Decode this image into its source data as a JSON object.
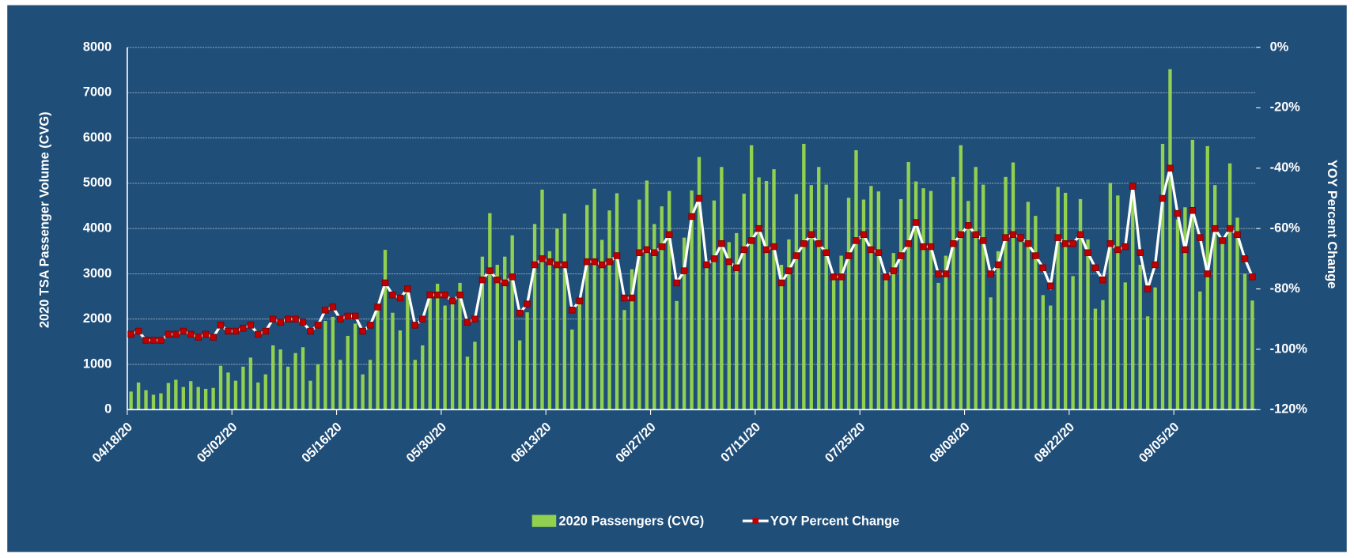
{
  "chart_data": {
    "type": "bar_line",
    "y_label": "2020 TSA Passenger Volume (CVG)",
    "y2_label": "YOY Percent Change",
    "categories": [
      "04/18/20",
      null,
      null,
      null,
      null,
      null,
      null,
      null,
      null,
      null,
      null,
      null,
      null,
      null,
      "05/02/20",
      null,
      null,
      null,
      null,
      null,
      null,
      null,
      null,
      null,
      null,
      null,
      null,
      null,
      "05/16/20",
      null,
      null,
      null,
      null,
      null,
      null,
      null,
      null,
      null,
      null,
      null,
      null,
      null,
      "05/30/20",
      null,
      null,
      null,
      null,
      null,
      null,
      null,
      null,
      null,
      null,
      null,
      null,
      null,
      "06/13/20",
      null,
      null,
      null,
      null,
      null,
      null,
      null,
      null,
      null,
      null,
      null,
      null,
      null,
      "06/27/20",
      null,
      null,
      null,
      null,
      null,
      null,
      null,
      null,
      null,
      null,
      null,
      null,
      null,
      "07/11/20",
      null,
      null,
      null,
      null,
      null,
      null,
      null,
      null,
      null,
      null,
      null,
      null,
      null,
      "07/25/20",
      null,
      null,
      null,
      null,
      null,
      null,
      null,
      null,
      null,
      null,
      null,
      null,
      null,
      "08/08/20",
      null,
      null,
      null,
      null,
      null,
      null,
      null,
      null,
      null,
      null,
      null,
      null,
      null,
      "08/22/20",
      null,
      null,
      null,
      null,
      null,
      null,
      null,
      null,
      null,
      null,
      null,
      null,
      null,
      "09/05/20",
      null,
      null,
      null,
      null,
      null,
      null,
      null,
      null,
      null,
      null
    ],
    "series": [
      {
        "name": "2020 Passengers (CVG)",
        "color": "#92d050",
        "values": [
          400,
          600,
          430,
          330,
          360,
          590,
          660,
          500,
          630,
          500,
          460,
          480,
          970,
          820,
          640,
          950,
          1150,
          600,
          780,
          1420,
          1330,
          950,
          1250,
          1380,
          640,
          1000,
          1960,
          2050,
          1100,
          1630,
          1900,
          780,
          1100,
          2200,
          3530,
          2140,
          1750,
          2600,
          1100,
          1420,
          2550,
          2780,
          2300,
          2400,
          2800,
          1170,
          1500,
          3380,
          4340,
          3200,
          3380,
          3850,
          1530,
          2150,
          4100,
          4860,
          3500,
          4000,
          4330,
          1770,
          2400,
          4520,
          4880,
          3750,
          4400,
          4780,
          2200,
          3100,
          4640,
          5060,
          4100,
          4490,
          4830,
          2400,
          3800,
          4840,
          5580,
          3200,
          4620,
          5360,
          3700,
          3900,
          4770,
          5840,
          5130,
          5050,
          5310,
          3200,
          3760,
          4760,
          5870,
          4960,
          5360,
          4970,
          3000,
          3400,
          4680,
          5730,
          4640,
          4940,
          4820,
          3000,
          3460,
          4650,
          5470,
          5040,
          4890,
          4830,
          2800,
          3400,
          5140,
          5840,
          4610,
          5360,
          4970,
          2480,
          3500,
          5140,
          5460,
          3700,
          4590,
          4280,
          2530,
          2300,
          4920,
          4790,
          2950,
          4650,
          3760,
          2230,
          2420,
          5010,
          4730,
          2810,
          5000,
          3200,
          2060,
          2700,
          5870,
          7520,
          4200,
          4470,
          5960,
          2610,
          5820,
          4960,
          3700,
          5440,
          4240,
          3000,
          2410
        ]
      },
      {
        "name": "YOY Percent Change",
        "color": "#ffffff",
        "marker_color": "#c00000",
        "axis": "y2",
        "values": [
          -95,
          -94,
          -97,
          -97,
          -97,
          -95,
          -95,
          -94,
          -95,
          -96,
          -95,
          -96,
          -92,
          -94,
          -94,
          -93,
          -92,
          -95,
          -94,
          -90,
          -91,
          -90,
          -90,
          -91,
          -94,
          -92,
          -87,
          -86,
          -90,
          -89,
          -89,
          -94,
          -92,
          -86,
          -78,
          -82,
          -83,
          -80,
          -92,
          -90,
          -82,
          -82,
          -82,
          -84,
          -82,
          -91,
          -90,
          -77,
          -74,
          -77,
          -78,
          -76,
          -88,
          -85,
          -72,
          -70,
          -71,
          -72,
          -72,
          -87,
          -84,
          -71,
          -71,
          -72,
          -71,
          -69,
          -83,
          -83,
          -68,
          -67,
          -68,
          -66,
          -62,
          -78,
          -74,
          -56,
          -50,
          -72,
          -70,
          -65,
          -71,
          -73,
          -67,
          -64,
          -60,
          -67,
          -66,
          -78,
          -74,
          -69,
          -65,
          -62,
          -65,
          -68,
          -76,
          -76,
          -69,
          -64,
          -62,
          -67,
          -68,
          -76,
          -74,
          -69,
          -65,
          -58,
          -66,
          -66,
          -75,
          -75,
          -65,
          -62,
          -59,
          -62,
          -64,
          -75,
          -72,
          -63,
          -62,
          -63,
          -65,
          -69,
          -73,
          -79,
          -63,
          -65,
          -65,
          -62,
          -68,
          -73,
          -77,
          -65,
          -67,
          -66,
          -46,
          -68,
          -80,
          -72,
          -50,
          -40,
          -55,
          -67,
          -54,
          -63,
          -75,
          -60,
          -64,
          -60,
          -62,
          -70,
          -76
        ]
      }
    ],
    "ylim": [
      0,
      8000
    ],
    "yticks": [
      0,
      1000,
      2000,
      3000,
      4000,
      5000,
      6000,
      7000,
      8000
    ],
    "y2lim": [
      -120,
      0
    ],
    "y2ticks": [
      {
        "value": -120,
        "label": "-120%"
      },
      {
        "value": -100,
        "label": "-100%"
      },
      {
        "value": -80,
        "label": "-80%"
      },
      {
        "value": -60,
        "label": "-60%"
      },
      {
        "value": -40,
        "label": "-40%"
      },
      {
        "value": -20,
        "label": "-20%"
      },
      {
        "value": 0,
        "label": "0%"
      }
    ],
    "grid": true,
    "background": "#1f4e79",
    "legend": "bottom"
  }
}
